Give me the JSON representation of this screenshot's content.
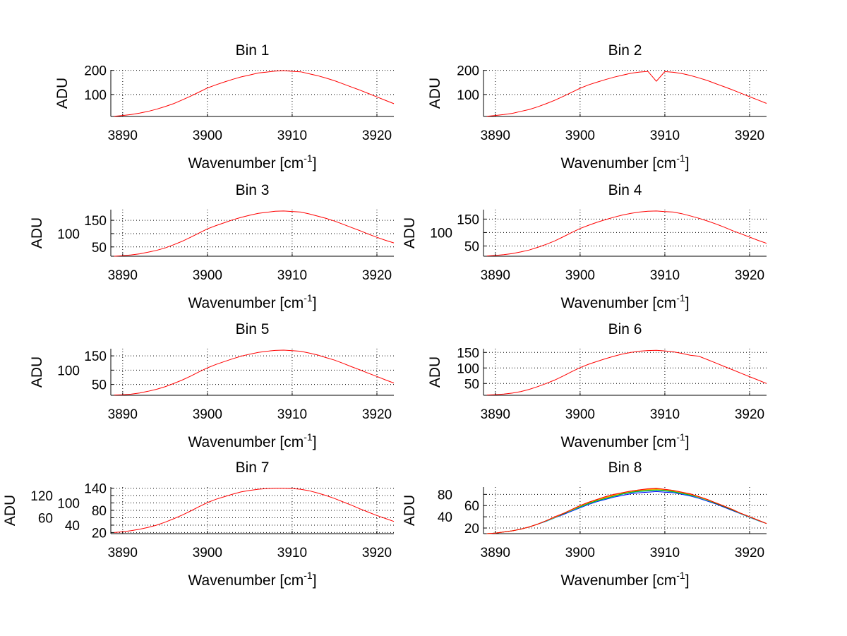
{
  "chart_data": {
    "type": "line",
    "layout": "4x2 subplots",
    "x": [
      3889,
      3890,
      3891,
      3892,
      3893,
      3894,
      3895,
      3896,
      3897,
      3898,
      3899,
      3900,
      3901,
      3902,
      3903,
      3904,
      3905,
      3906,
      3907,
      3908,
      3909,
      3910,
      3911,
      3912,
      3913,
      3914,
      3915,
      3916,
      3917,
      3918,
      3919,
      3920,
      3921,
      3922
    ],
    "xlim": [
      3888.6,
      3922
    ],
    "xticks": [
      3890,
      3900,
      3910,
      3920
    ],
    "xtick_labels": [
      "3890",
      "3900",
      "3910",
      "3920"
    ],
    "xlabel": {
      "main": "Wavenumber [cm",
      "sup": "-1",
      "end": "]"
    },
    "ylabel": "ADU",
    "grid": true,
    "subplots": [
      {
        "title": "Bin 1",
        "ylim": [
          9,
          202
        ],
        "yticks": [
          100,
          200
        ],
        "ytick_labels": [
          "100",
          "200"
        ],
        "series": [
          {
            "name": "spectrum",
            "color": "#ff0000",
            "values": [
              10,
              13,
              17,
              23,
              30,
              39,
              50,
              62,
              77,
              93,
              110,
              127,
              140,
              152,
              163,
              173,
              181,
              189,
              193,
              197,
              199,
              196,
              194,
              186,
              178,
              168,
              157,
              144,
              131,
              118,
              104,
              90,
              76,
              62
            ]
          }
        ]
      },
      {
        "title": "Bin 2",
        "ylim": [
          9,
          202
        ],
        "yticks": [
          100,
          200
        ],
        "ytick_labels": [
          "100",
          "200"
        ],
        "series": [
          {
            "name": "spectrum",
            "color": "#ff0000",
            "values": [
              10,
              13,
              17,
              22,
              30,
              38,
              49,
              62,
              76,
              92,
              109,
              126,
              140,
              151,
              162,
              172,
              180,
              188,
              193,
              196,
              155,
              195,
              192,
              187,
              179,
              169,
              158,
              145,
              132,
              119,
              105,
              91,
              77,
              63
            ]
          }
        ]
      },
      {
        "title": "Bin 3",
        "ylim": [
          15,
          190
        ],
        "yticks": [
          50,
          100,
          150
        ],
        "ytick_labels": [
          "50",
          "100",
          "150"
        ],
        "series": [
          {
            "name": "spectrum",
            "color": "#ff0000",
            "values": [
              15,
              17,
              20,
              24,
              30,
              37,
              46,
              58,
              71,
              86,
              102,
              118,
              130,
              141,
              152,
              161,
              169,
              176,
              180,
              184,
              185,
              183,
              181,
              174,
              166,
              157,
              147,
              135,
              123,
              111,
              98,
              86,
              75,
              65
            ]
          }
        ]
      },
      {
        "title": "Bin 4",
        "ylim": [
          12,
          185
        ],
        "yticks": [
          50,
          100,
          150
        ],
        "ytick_labels": [
          "50",
          "100",
          "150"
        ],
        "series": [
          {
            "name": "spectrum",
            "color": "#ff0000",
            "values": [
              13,
              15,
              18,
              22,
              28,
              35,
              45,
              56,
              69,
              84,
              100,
              115,
              127,
              138,
              148,
              157,
              165,
              171,
              176,
              179,
              180,
              178,
              176,
              170,
              162,
              153,
              143,
              132,
              120,
              107,
              95,
              83,
              71,
              60
            ]
          }
        ]
      },
      {
        "title": "Bin 5",
        "ylim": [
          12,
          175
        ],
        "yticks": [
          50,
          100,
          150
        ],
        "ytick_labels": [
          "50",
          "100",
          "150"
        ],
        "series": [
          {
            "name": "spectrum",
            "color": "#ff0000",
            "values": [
              13,
              14,
              16,
              20,
              26,
              33,
              42,
              53,
              65,
              79,
              94,
              108,
              120,
              130,
              140,
              149,
              156,
              162,
              166,
              169,
              170,
              168,
              166,
              160,
              153,
              144,
              135,
              124,
              112,
              101,
              89,
              78,
              66,
              55
            ]
          }
        ]
      },
      {
        "title": "Bin 6",
        "ylim": [
          12,
          162
        ],
        "yticks": [
          50,
          100,
          150
        ],
        "ytick_labels": [
          "50",
          "100",
          "150"
        ],
        "series": [
          {
            "name": "spectrum",
            "color": "#ff0000",
            "values": [
              13,
              14,
              16,
              19,
              24,
              31,
              40,
              50,
              61,
              74,
              88,
              101,
              112,
              121,
              130,
              138,
              145,
              150,
              154,
              156,
              157,
              155,
              152,
              147,
              141,
              138,
              127,
              116,
              105,
              94,
              83,
              72,
              61,
              50
            ]
          }
        ]
      },
      {
        "title": "Bin 7",
        "ylim": [
          17,
          143
        ],
        "yticks": [
          20,
          40,
          60,
          80,
          100,
          120,
          140
        ],
        "ytick_labels": [
          "20",
          "40",
          "60",
          "80",
          "100",
          "120",
          "140"
        ],
        "series": [
          {
            "name": "spectrum",
            "color": "#ff0000",
            "values": [
              20,
              22,
              25,
              29,
              34,
              40,
              48,
              57,
              67,
              78,
              90,
              101,
              110,
              117,
              124,
              130,
              134,
              137,
              139,
              140,
              140,
              139,
              137,
              133,
              127,
              120,
              112,
              103,
              94,
              84,
              75,
              66,
              58,
              50
            ]
          }
        ]
      },
      {
        "title": "Bin 8",
        "ylim": [
          10,
          93
        ],
        "yticks": [
          20,
          40,
          60,
          80
        ],
        "ytick_labels": [
          "20",
          "40",
          "60",
          "80"
        ],
        "series": [
          {
            "name": "series-1",
            "color": "#0000ff",
            "values": [
              10,
              11,
              13,
              15,
              18,
              22,
              27,
              32,
              38,
              44,
              50,
              56,
              62,
              67,
              71,
              75,
              78,
              81,
              83,
              84,
              85,
              84,
              83,
              80,
              77,
              73,
              68,
              63,
              57,
              51,
              45,
              39,
              33,
              28
            ]
          },
          {
            "name": "series-2",
            "color": "#00bfbf",
            "values": [
              10,
              11,
              13,
              15,
              18,
              22,
              27,
              32,
              38,
              45,
              51,
              57,
              63,
              68,
              72,
              76,
              80,
              83,
              85,
              86,
              87,
              86,
              84,
              81,
              78,
              74,
              69,
              64,
              58,
              52,
              45,
              39,
              33,
              28
            ]
          },
          {
            "name": "series-3",
            "color": "#00a000",
            "values": [
              10,
              11,
              13,
              15,
              18,
              22,
              27,
              33,
              39,
              45,
              52,
              58,
              64,
              69,
              73,
              77,
              81,
              84,
              86,
              87,
              88,
              87,
              85,
              82,
              79,
              75,
              70,
              64,
              58,
              52,
              46,
              40,
              34,
              28
            ]
          },
          {
            "name": "series-4",
            "color": "#e0c000",
            "values": [
              10,
              11,
              13,
              15,
              18,
              22,
              27,
              33,
              39,
              46,
              52,
              59,
              65,
              70,
              74,
              78,
              82,
              85,
              87,
              88,
              89,
              88,
              86,
              83,
              80,
              75,
              70,
              65,
              59,
              53,
              46,
              40,
              34,
              28
            ]
          },
          {
            "name": "series-5",
            "color": "#ff8000",
            "values": [
              10,
              11,
              13,
              15,
              18,
              22,
              27,
              33,
              39,
              46,
              53,
              60,
              66,
              71,
              75,
              79,
              83,
              86,
              88,
              89,
              90,
              89,
              87,
              84,
              80,
              76,
              71,
              65,
              59,
              53,
              46,
              40,
              34,
              28
            ]
          },
          {
            "name": "series-6",
            "color": "#ff0000",
            "values": [
              10,
              11,
              13,
              15,
              18,
              22,
              27,
              33,
              40,
              46,
              53,
              60,
              66,
              71,
              76,
              80,
              83,
              86,
              88,
              90,
              91,
              89,
              87,
              84,
              81,
              76,
              71,
              65,
              59,
              53,
              46,
              40,
              34,
              28
            ]
          }
        ]
      }
    ]
  }
}
